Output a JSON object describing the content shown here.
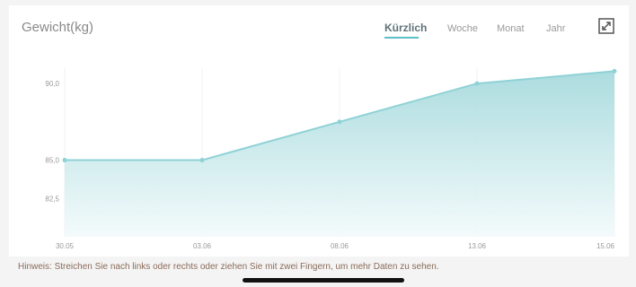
{
  "header": {
    "title": "Gewicht(kg)",
    "tabs": [
      {
        "label": "Kürzlich",
        "active": true
      },
      {
        "label": "Woche",
        "active": false
      },
      {
        "label": "Monat",
        "active": false
      },
      {
        "label": "Jahr",
        "active": false
      }
    ],
    "expand_icon": "expand-icon"
  },
  "chart_data": {
    "type": "area",
    "title": "Gewicht(kg)",
    "xlabel": "",
    "ylabel": "",
    "categories": [
      "30.05",
      "03.06",
      "08.06",
      "13.06",
      "15.06"
    ],
    "values": [
      85.0,
      85.0,
      87.5,
      90.0,
      90.8
    ],
    "ylim": [
      80,
      91
    ],
    "yticks": [
      82.5,
      85.0,
      90.0
    ],
    "ytick_labels": [
      "82,5",
      "85,0",
      "90,0"
    ],
    "grid": true,
    "colors": {
      "line": "#8fd2d6",
      "fill_top": "#a7dadd",
      "fill_bottom": "#f2fafb"
    }
  },
  "footer": {
    "hint": "Hinweis: Streichen Sie nach links oder rechts oder ziehen Sie mit zwei Fingern, um mehr Daten zu sehen."
  }
}
